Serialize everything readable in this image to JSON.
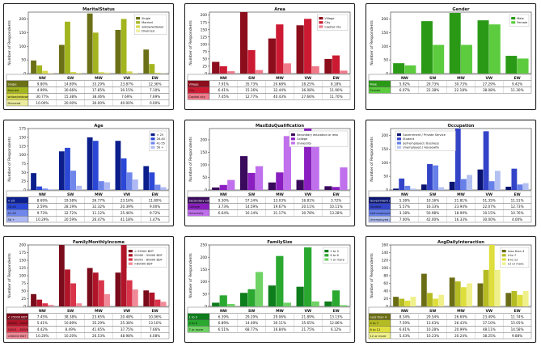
{
  "chart_data": [
    {
      "type": "bar",
      "title": "MaritalStatus",
      "ylabel": "Number of Respondents",
      "categories": [
        "NW",
        "SW",
        "MW",
        "VW",
        "EW"
      ],
      "ylim": [
        0,
        225
      ],
      "yticks": [
        0,
        50,
        100,
        150,
        200
      ],
      "legend_position": "top-right",
      "series": [
        {
          "name": "Single",
          "color": "#6b7016",
          "values": [
            48,
            105,
            220,
            160,
            88
          ],
          "pct": [
            "9.80%",
            "14.89%",
            "33.29%",
            "23.87%",
            "12.36%"
          ]
        },
        {
          "name": "Married",
          "color": "#a3b51e",
          "values": [
            30,
            190,
            150,
            200,
            35
          ],
          "pct": [
            "4.99%",
            "30.66%",
            "17.85%",
            "30.15%",
            "7.10%"
          ]
        },
        {
          "name": "widow/widower",
          "color": "#d6d94a",
          "values": [
            10,
            6,
            5,
            8,
            3
          ],
          "pct": [
            "30.77%",
            "15.38%",
            "38.46%",
            "7.69%",
            "7.69%"
          ]
        },
        {
          "name": "Divorced",
          "color": "#ecec9e",
          "values": [
            2,
            3,
            4,
            2,
            1
          ],
          "pct": [
            "10.00%",
            "20.00%",
            "30.00%",
            "40.00%",
            "0.00%"
          ]
        }
      ]
    },
    {
      "type": "bar",
      "title": "Area",
      "ylabel": "Number of Respondents",
      "categories": [
        "NW",
        "SW",
        "MW",
        "VW",
        "EW"
      ],
      "ylim": [
        0,
        210
      ],
      "yticks": [
        0,
        25,
        50,
        75,
        100,
        125,
        150,
        175,
        200
      ],
      "legend_position": "top-right",
      "series": [
        {
          "name": "Village",
          "color": "#8c0d1c",
          "values": [
            40,
            210,
            120,
            165,
            50
          ],
          "pct": [
            "7.91%",
            "35.73%",
            "20.68%",
            "28.25%",
            "8.18%"
          ]
        },
        {
          "name": "City",
          "color": "#cc1a33",
          "values": [
            25,
            80,
            168,
            187,
            62
          ],
          "pct": [
            "6.41%",
            "15.16%",
            "32.44%",
            "36.08%",
            "11.90%"
          ]
        },
        {
          "name": "Capital city",
          "color": "#f07a8a",
          "values": [
            8,
            12,
            35,
            25,
            10
          ],
          "pct": [
            "7.45%",
            "12.77%",
            "40.43%",
            "27.66%",
            "11.70%"
          ]
        }
      ]
    },
    {
      "type": "bar",
      "title": "Gender",
      "ylabel": "Number of Respondents",
      "categories": [
        "NW",
        "SW",
        "MW",
        "VW",
        "EW"
      ],
      "ylim": [
        0,
        225
      ],
      "yticks": [
        0,
        50,
        100,
        150,
        200
      ],
      "legend_position": "top-right",
      "series": [
        {
          "name": "Male",
          "color": "#2a9a16",
          "values": [
            38,
            192,
            222,
            195,
            65
          ],
          "pct": [
            "5.92%",
            "29.73%",
            "30.73%",
            "27.29%",
            "9.42%"
          ]
        },
        {
          "name": "Female",
          "color": "#5ccc3e",
          "values": [
            30,
            105,
            105,
            180,
            55
          ],
          "pct": [
            "6.07%",
            "22.38%",
            "22.18%",
            "38.08%",
            "11.30%"
          ]
        }
      ]
    },
    {
      "type": "bar",
      "title": "Age",
      "ylabel": "Number of Respondents",
      "categories": [
        "NW",
        "SW",
        "MW",
        "VW",
        "EW"
      ],
      "ylim": [
        0,
        175
      ],
      "yticks": [
        0,
        25,
        50,
        75,
        100,
        125,
        150,
        175
      ],
      "legend_position": "top-right",
      "series": [
        {
          "name": "< 25",
          "color": "#0b1e8c",
          "values": [
            48,
            110,
            150,
            140,
            68
          ],
          "pct": [
            "8.69%",
            "19.58%",
            "26.77%",
            "23.16%",
            "11.89%"
          ]
        },
        {
          "name": "26-40",
          "color": "#2b47d6",
          "values": [
            10,
            120,
            140,
            90,
            50
          ],
          "pct": [
            "2.59%",
            "28.19%",
            "32.32%",
            "20.39%",
            "9.00%"
          ]
        },
        {
          "name": "41-55",
          "color": "#6f87ea",
          "values": [
            4,
            55,
            25,
            50,
            15
          ],
          "pct": [
            "9.73%",
            "32.72%",
            "11.12%",
            "25.46%",
            "9.72%"
          ]
        },
        {
          "name": "56 +",
          "color": "#aeb9f4",
          "values": [
            2,
            12,
            22,
            30,
            8
          ],
          "pct": [
            "10.29%",
            "20.59%",
            "26.47%",
            "41.18%",
            "1.47%"
          ]
        }
      ]
    },
    {
      "type": "bar",
      "title": "MaxEduQualification",
      "ylabel": "Number of Respondents",
      "categories": [
        "NW",
        "SW",
        "MW",
        "VW",
        "EW"
      ],
      "ylim": [
        0,
        245
      ],
      "yticks": [
        0,
        50,
        100,
        150,
        200
      ],
      "legend_position": "top-right",
      "series": [
        {
          "name": "Secondary education or less",
          "color": "#3a0a5c",
          "values": [
            10,
            135,
            30,
            40,
            15
          ],
          "pct": [
            "9.30%",
            "57.14%",
            "13.03%",
            "16.81%",
            "3.72%"
          ]
        },
        {
          "name": "College",
          "color": "#8a1ec0",
          "values": [
            20,
            68,
            70,
            245,
            12
          ],
          "pct": [
            "3.73%",
            "14.59%",
            "19.67%",
            "20.11%",
            "10.11%"
          ]
        },
        {
          "name": "University",
          "color": "#c070ec",
          "values": [
            40,
            95,
            215,
            200,
            90
          ],
          "pct": [
            "6.64%",
            "16.14%",
            "31.17%",
            "30.78%",
            "13.28%"
          ]
        }
      ]
    },
    {
      "type": "bar",
      "title": "Occupation",
      "ylabel": "Number of Respondents",
      "categories": [
        "NW",
        "SW",
        "MW",
        "VW",
        "EW"
      ],
      "ylim": [
        0,
        225
      ],
      "yticks": [
        0,
        50,
        100,
        150,
        200
      ],
      "legend_position": "top-left",
      "series": [
        {
          "name": "Government / Private Service",
          "color": "#0a1470",
          "values": [
            5,
            20,
            30,
            75,
            12
          ],
          "pct": [
            "5.38%",
            "10.16%",
            "21.81%",
            "51.35%",
            "11.51%"
          ]
        },
        {
          "name": "Student",
          "color": "#3344c8",
          "values": [
            42,
            95,
            225,
            215,
            78
          ],
          "pct": [
            "5.57%",
            "16.33%",
            "23.94%",
            "22.07%",
            "12.73%"
          ]
        },
        {
          "name": "Self-employed / Business",
          "color": "#6680e8",
          "values": [
            15,
            90,
            40,
            32,
            20
          ],
          "pct": [
            "3.18%",
            "50.98%",
            "18.99%",
            "10.15%",
            "10.76%"
          ]
        },
        {
          "name": "Unemployed / Housewife",
          "color": "#b2c0f2",
          "values": [
            5,
            10,
            55,
            70,
            25
          ],
          "pct": [
            "7.00%",
            "42.00%",
            "16.33%",
            "30.00%",
            "4.00%"
          ]
        }
      ]
    },
    {
      "type": "bar",
      "title": "FamilyMonthlyIncome",
      "ylabel": "Number of Respondents",
      "categories": [
        "NW",
        "SW",
        "MW",
        "VW",
        "EW"
      ],
      "ylim": [
        0,
        200
      ],
      "yticks": [
        0,
        25,
        50,
        75,
        100,
        125,
        150,
        175,
        200
      ],
      "legend_position": "top-right",
      "series": [
        {
          "name": "< 25000 BDT",
          "color": "#7a0b1a",
          "values": [
            40,
            200,
            125,
            110,
            52
          ],
          "pct": [
            "7.45%",
            "38.38%",
            "23.65%",
            "20.48%",
            "10.06%"
          ]
        },
        {
          "name": "25000 - 50000 BDT",
          "color": "#b01428",
          "values": [
            22,
            120,
            110,
            200,
            45
          ],
          "pct": [
            "5.41%",
            "10.89%",
            "35.29%",
            "25.38%",
            "13.10%"
          ]
        },
        {
          "name": "50001 - 80000 BDT",
          "color": "#d9344a",
          "values": [
            10,
            75,
            85,
            85,
            22
          ],
          "pct": [
            "4.42%",
            "8.49%",
            "41.65%",
            "37.75%",
            "7.66%"
          ]
        },
        {
          "name": ">80000 BDT",
          "color": "#f18a98",
          "values": [
            5,
            10,
            40,
            55,
            15
          ],
          "pct": [
            "10.20%",
            "10.20%",
            "26.53%",
            "48.98%",
            "4.08%"
          ]
        }
      ]
    },
    {
      "type": "bar",
      "title": "FamilySize",
      "ylabel": "Number of Respondents",
      "categories": [
        "NW",
        "SW",
        "MW",
        "VW",
        "EW"
      ],
      "ylim": [
        0,
        250
      ],
      "yticks": [
        0,
        50,
        100,
        150,
        200,
        250
      ],
      "legend_position": "top-right",
      "series": [
        {
          "name": "1 to 3",
          "color": "#0e7d1c",
          "values": [
            15,
            55,
            85,
            80,
            20
          ],
          "pct": [
            "6.39%",
            "29.29%",
            "29.06%",
            "21.89%",
            "13.13%"
          ]
        },
        {
          "name": "4 to 6",
          "color": "#2aa830",
          "values": [
            45,
            70,
            205,
            240,
            65
          ],
          "pct": [
            "6.89%",
            "14.49%",
            "30.11%",
            "35.65%",
            "12.86%"
          ]
        },
        {
          "name": "7 or more",
          "color": "#6fd264",
          "values": [
            10,
            140,
            15,
            20,
            5
          ],
          "pct": [
            "6.51%",
            "68.77%",
            "16.84%",
            "21.75%",
            "6.12%"
          ]
        }
      ]
    },
    {
      "type": "bar",
      "title": "AvgDailyInteraction",
      "ylabel": "Number of Respondents",
      "categories": [
        "NW",
        "SW",
        "MW",
        "VW",
        "EW"
      ],
      "ylim": [
        0,
        160
      ],
      "yticks": [
        0,
        20,
        40,
        60,
        80,
        100,
        120,
        140,
        160
      ],
      "legend_position": "top-right",
      "series": [
        {
          "name": "Less than 4",
          "color": "#6b6d16",
          "values": [
            25,
            85,
            75,
            60,
            35
          ],
          "pct": [
            "8.34%",
            "29.54%",
            "26.69%",
            "23.49%",
            "11.74%"
          ]
        },
        {
          "name": "4 to 7",
          "color": "#b5bb22",
          "values": [
            20,
            35,
            65,
            95,
            40
          ],
          "pct": [
            "7.59%",
            "13.63%",
            "26.43%",
            "37.10%",
            "15.05%"
          ]
        },
        {
          "name": "8 to 12",
          "color": "#dede3c",
          "values": [
            15,
            20,
            50,
            160,
            30
          ],
          "pct": [
            "6.61%",
            "10.28%",
            "20.99%",
            "48.11%",
            "14.58%"
          ]
        },
        {
          "name": "12 or more",
          "color": "#f0f08a",
          "values": [
            25,
            30,
            60,
            95,
            40
          ],
          "pct": [
            "5.43%",
            "10.23%",
            "20.24%",
            "38.25%",
            "9.88%"
          ]
        }
      ]
    }
  ]
}
